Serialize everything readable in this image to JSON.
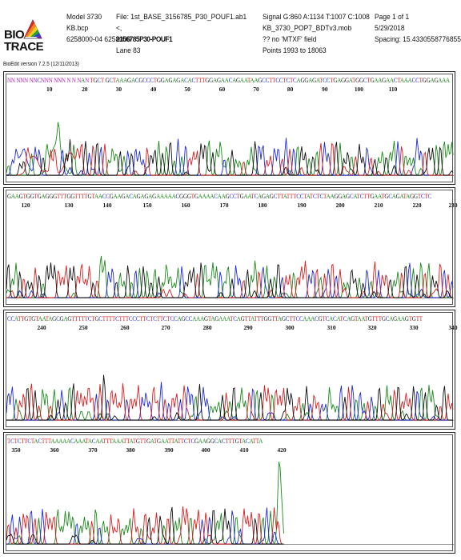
{
  "header": {
    "col1": [
      "Model 3730",
      "KB.bcp",
      "625800​0-04 6258000"
    ],
    "col2": [
      "File: 1st_BASE_3156785_P30_POUF1.ab1",
      "<,",
      "2156785P30-POUF1",
      "Lane 83"
    ],
    "col3": [
      "Signal G:860 A:1134 T:1007 C:1008",
      "KB_3730_POP7_BDTv3.mob",
      "?? no 'MTXF' field",
      "Points 1993 to 18063"
    ],
    "col4": [
      "Page 1 of 1",
      "5/29/2018",
      "Spacing: 15.4330558776855"
    ],
    "logo_line1": "BIO",
    "logo_line2": "TRACE",
    "version": "BioEdit version 7.2.5 (12/11/2013)"
  },
  "colors": {
    "A": "#1d8a1d",
    "C": "#1f2bd6",
    "G": "#111111",
    "T": "#d61f1f",
    "N": "#b025b0"
  },
  "panels": [
    {
      "bases": "NN NNN NNCNNN NNN N  N NAN TGCT GCTAAAGACGCCCTGGAGAGACACTTTGGAGAACAGAATAAGCCTTCCTCTCAGGAGATCCTGAGGATGGCTGAAGAACTAAACCTGGAGAAA",
      "ticks": [
        "10",
        "20",
        "30",
        "40",
        "50",
        "60",
        "70",
        "80",
        "90",
        "100",
        "110"
      ]
    },
    {
      "bases": "GAAGTGGTGAGGGTTTGGTTTTGTAACCGAAGACAGAGAGAAAAACGGGTGAAAACAAGCCTGAATCAGAGCTTATTTCCTATCTCTAAGGAGCATCTTGAATGCAGATAGGTCTC",
      "ticks": [
        "120",
        "130",
        "140",
        "150",
        "160",
        "170",
        "180",
        "190",
        "200",
        "210",
        "220",
        "230"
      ]
    },
    {
      "bases": "CCATTGTGTAATAGCGAGTTTTTCTGCTTTTCTTTCCCTTCTCTTCTCCAGCCAAAGTAGAAATCAGTTATTTGGTTAGCTTCCAAACGTCACATCAGTAATGTTTGCAGAAGTGTT",
      "ticks": [
        "240",
        "250",
        "260",
        "270",
        "280",
        "290",
        "300",
        "310",
        "320",
        "330",
        "340"
      ]
    },
    {
      "bases": "TCTCTTCTACTTTAAAAACAAATACAATTTAAATTATGTTGATGAATTATTCTCGAAGGCACTTTGTACATTA",
      "ticks": [
        "350",
        "360",
        "370",
        "380",
        "390",
        "400",
        "410",
        "420"
      ]
    }
  ]
}
